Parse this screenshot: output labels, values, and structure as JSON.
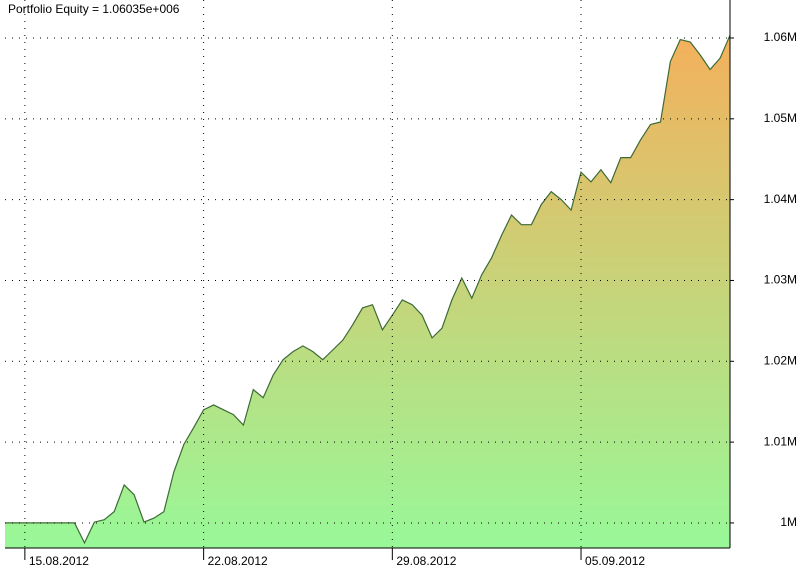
{
  "chart_data": {
    "type": "area",
    "title": "Portfolio Equity = 1.06035e+006",
    "categories": [
      null,
      null,
      "15.08.2012",
      null,
      null,
      null,
      null,
      null,
      null,
      null,
      null,
      null,
      null,
      null,
      null,
      null,
      null,
      null,
      null,
      null,
      "22.08.2012",
      null,
      null,
      null,
      null,
      null,
      null,
      null,
      null,
      null,
      null,
      null,
      null,
      null,
      null,
      null,
      null,
      null,
      null,
      "29.08.2012",
      null,
      null,
      null,
      null,
      null,
      null,
      null,
      null,
      null,
      null,
      null,
      null,
      null,
      null,
      null,
      null,
      null,
      null,
      "05.09.2012",
      null,
      null,
      null,
      null,
      null,
      null,
      null,
      null,
      null,
      null,
      null,
      null,
      null,
      null,
      null
    ],
    "values": [
      1000000,
      1000000,
      1000000,
      1000000,
      1000000,
      1000000,
      1000000,
      1000000,
      997525,
      1000100,
      1000400,
      1001400,
      1004700,
      1003500,
      1000100,
      1000600,
      1001400,
      1006300,
      1009700,
      1011800,
      1014000,
      1014600,
      1014000,
      1013400,
      1012100,
      1016500,
      1015500,
      1018300,
      1020200,
      1021200,
      1021900,
      1021200,
      1020200,
      1021400,
      1022600,
      1024500,
      1026600,
      1027000,
      1023900,
      1025700,
      1027600,
      1027000,
      1025700,
      1022900,
      1024100,
      1027600,
      1030300,
      1027800,
      1030700,
      1032800,
      1035600,
      1038100,
      1036900,
      1036900,
      1039400,
      1041000,
      1040000,
      1038700,
      1043400,
      1042200,
      1043700,
      1042100,
      1045200,
      1045200,
      1047400,
      1049300,
      1049600,
      1057100,
      1059800,
      1059500,
      1057900,
      1056100,
      1057500,
      1060350
    ],
    "color": "#3d6b35",
    "fill_colors": [
      "#f4b05c",
      "#98f898"
    ],
    "ylim": [
      996900,
      1064700
    ],
    "yticks": [
      {
        "value": 1000000,
        "label": "1M"
      },
      {
        "value": 1010000,
        "label": "1.01M"
      },
      {
        "value": 1020000,
        "label": "1.02M"
      },
      {
        "value": 1030000,
        "label": "1.03M"
      },
      {
        "value": 1040000,
        "label": "1.04M"
      },
      {
        "value": 1050000,
        "label": "1.05M"
      },
      {
        "value": 1060000,
        "label": "1.06M"
      }
    ],
    "grid": true
  }
}
